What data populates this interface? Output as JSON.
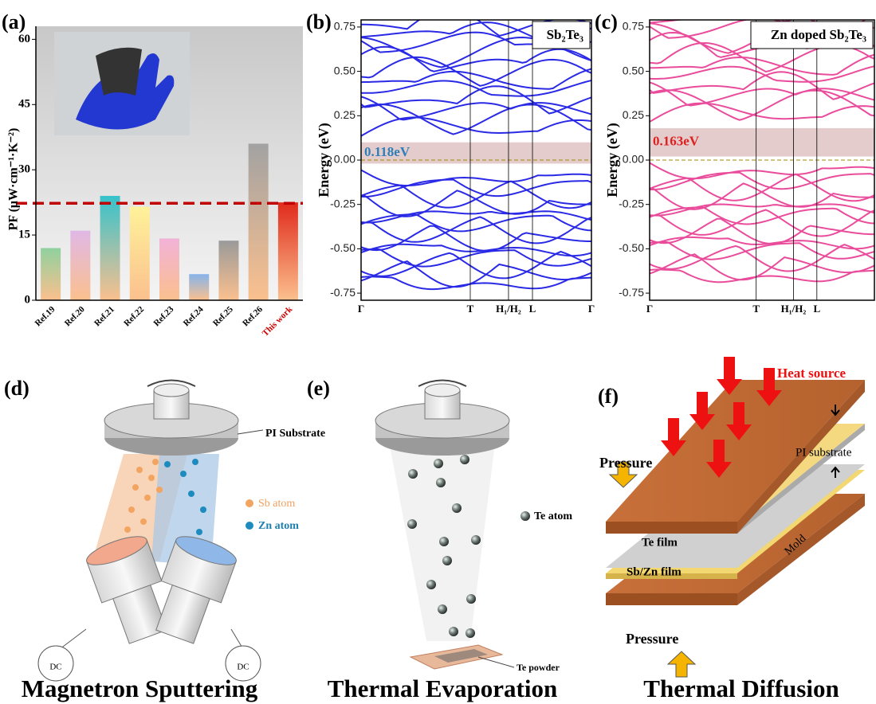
{
  "chart_data": [
    {
      "type": "bar",
      "panel_label": "(a)",
      "y_label": "PF (μW·cm⁻¹·K⁻²)",
      "categories": [
        "Ref.19",
        "Ref.20",
        "Ref.21",
        "Ref.22",
        "Ref.23",
        "Ref.24",
        "Ref.25",
        "Ref.26",
        "This work"
      ],
      "values": [
        12,
        16,
        24,
        21.5,
        14.2,
        6,
        13.7,
        36,
        22.5
      ],
      "colors": [
        "#8fd19e",
        "#e0b8e6",
        "#36c2cc",
        "#fff29a",
        "#f2b2d8",
        "#86b4ea",
        "#9a9a9a",
        "#a2a2a2",
        "#e02a1c"
      ],
      "base_color": "#fbc08e",
      "highlight_index": 8,
      "highlight_color": "#cc0000",
      "reference_line": 22.3,
      "reference_color": "#c00000",
      "ylim": [
        0,
        63
      ],
      "yticks": [
        0,
        15,
        30,
        45,
        60
      ]
    },
    {
      "type": "band",
      "panel_label": "(b)",
      "y_label": "Energy (eV)",
      "legend": "Sb₂Te₃",
      "color": "#2a2ae6",
      "gap_label": "0.118eV",
      "gap_label_color": "#2e7fb8",
      "gap_band": [
        -0.02,
        0.1
      ],
      "xlim": [
        0,
        1
      ],
      "xticks": [
        {
          "value": 0,
          "label": "Γ"
        },
        {
          "value": 0.474,
          "label": "T"
        },
        {
          "value": 0.64,
          "label": "H₁/H₂"
        },
        {
          "value": 0.744,
          "label": "L"
        },
        {
          "value": 1,
          "label": "Γ"
        }
      ],
      "ylim": [
        -0.79,
        0.79
      ],
      "yticks": [
        {
          "value": -0.75,
          "label": "-0.75"
        },
        {
          "value": -0.5,
          "label": "-0.50"
        },
        {
          "value": -0.25,
          "label": "-0.25"
        },
        {
          "value": 0,
          "label": "0.00"
        },
        {
          "value": 0.25,
          "label": "0.25"
        },
        {
          "value": 0.5,
          "label": "0.50"
        },
        {
          "value": 0.75,
          "label": "0.75"
        }
      ]
    },
    {
      "type": "band",
      "panel_label": "(c)",
      "y_label": "Energy (eV)",
      "legend": "Zn doped Sb₂Te₃",
      "color": "#ea4c9c",
      "gap_label": "0.163eV",
      "gap_label_color": "#dd2020",
      "gap_band": [
        0.02,
        0.18
      ],
      "xlim": [
        0,
        1
      ],
      "xticks": [
        {
          "value": 0,
          "label": "Γ"
        },
        {
          "value": 0.474,
          "label": "T"
        },
        {
          "value": 0.64,
          "label": "H₁/H₂"
        },
        {
          "value": 0.744,
          "label": "L"
        }
      ],
      "ylim": [
        -0.79,
        0.79
      ],
      "yticks": [
        {
          "value": -0.75,
          "label": "-0.75"
        },
        {
          "value": -0.5,
          "label": "-0.50"
        },
        {
          "value": -0.25,
          "label": "-0.25"
        },
        {
          "value": 0,
          "label": "0.00"
        },
        {
          "value": 0.25,
          "label": "0.25"
        },
        {
          "value": 0.5,
          "label": "0.50"
        },
        {
          "value": 0.75,
          "label": "0.75"
        }
      ]
    }
  ],
  "diagrams": {
    "d": {
      "label": "(d)",
      "caption": "Magnetron Sputtering",
      "substrate": "PI Substrate",
      "sb": "Sb atom",
      "zn": "Zn atom",
      "dc1": "DC",
      "dc2": "DC"
    },
    "e": {
      "label": "(e)",
      "caption": "Thermal Evaporation",
      "atom": "Te atom",
      "powder": "Te powder"
    },
    "f": {
      "label": "(f)",
      "caption": "Thermal Diffusion",
      "heat": "Heat source",
      "pressure_top": "Pressure",
      "substrate": "PI substrate",
      "te": "Te film",
      "sbzn": "Sb/Zn film",
      "mold": "Mold",
      "pressure_bottom": "Pressure"
    }
  }
}
